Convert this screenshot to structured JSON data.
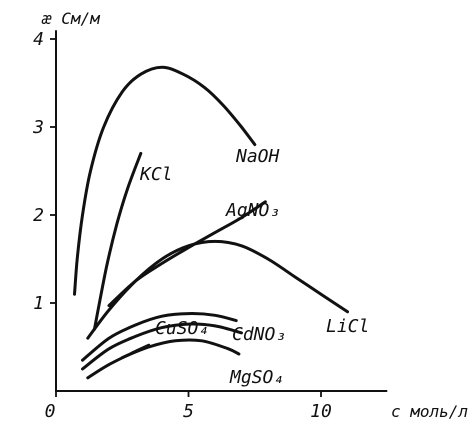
{
  "chart_data": {
    "type": "line",
    "title": "",
    "xlabel": "c моль/л",
    "ylabel": "æ См/м",
    "xlim": [
      0,
      12.5
    ],
    "ylim": [
      0,
      4
    ],
    "x_ticks": [
      {
        "value": 0,
        "label": "0"
      },
      {
        "value": 5,
        "label": "5"
      },
      {
        "value": 10,
        "label": "10"
      }
    ],
    "y_ticks": [
      {
        "value": 1,
        "label": "1"
      },
      {
        "value": 2,
        "label": "2"
      },
      {
        "value": 3,
        "label": "3"
      },
      {
        "value": 4,
        "label": "4"
      }
    ],
    "grid": false,
    "legend": "none",
    "series": [
      {
        "name": "KCl",
        "x": [
          1.45,
          1.9,
          2.3,
          2.7,
          3.2
        ],
        "y": [
          0.7,
          1.4,
          1.9,
          2.3,
          2.7
        ]
      },
      {
        "name": "NaOH",
        "x": [
          0.7,
          0.8,
          1.0,
          1.3,
          1.8,
          2.5,
          3.2,
          4.0,
          4.8,
          5.6,
          6.3,
          7.0,
          7.5
        ],
        "y": [
          1.1,
          1.5,
          2.0,
          2.5,
          3.0,
          3.4,
          3.6,
          3.68,
          3.6,
          3.45,
          3.25,
          3.0,
          2.8
        ]
      },
      {
        "name": "AgNO₃",
        "x": [
          2.0,
          3.0,
          4.0,
          5.0,
          6.0,
          7.0,
          7.9
        ],
        "y": [
          0.97,
          1.25,
          1.45,
          1.63,
          1.8,
          1.97,
          2.15
        ]
      },
      {
        "name": "LiCl",
        "x": [
          1.2,
          2.0,
          3.0,
          4.0,
          5.0,
          6.0,
          7.0,
          8.0,
          9.0,
          10.0,
          11.0
        ],
        "y": [
          0.6,
          0.92,
          1.25,
          1.5,
          1.65,
          1.7,
          1.65,
          1.5,
          1.3,
          1.1,
          0.9
        ]
      },
      {
        "name": "CuSO₄",
        "x": [
          1.0,
          2.0,
          3.0,
          4.0,
          5.0,
          6.0,
          6.8
        ],
        "y": [
          0.35,
          0.6,
          0.75,
          0.85,
          0.88,
          0.86,
          0.8
        ]
      },
      {
        "name": "CdNO₃",
        "x": [
          1.0,
          2.0,
          3.0,
          4.0,
          5.0,
          6.0,
          7.0
        ],
        "y": [
          0.25,
          0.48,
          0.62,
          0.72,
          0.76,
          0.74,
          0.66
        ]
      },
      {
        "name": "MgSO₄",
        "x": [
          2.5,
          3.5,
          4.5,
          5.5,
          6.5,
          6.9
        ],
        "y": [
          0.38,
          0.5,
          0.57,
          0.57,
          0.48,
          0.42
        ]
      },
      {
        "name": "",
        "x": [
          1.2,
          2.0,
          3.0,
          3.5
        ],
        "y": [
          0.15,
          0.3,
          0.45,
          0.52
        ]
      }
    ]
  }
}
